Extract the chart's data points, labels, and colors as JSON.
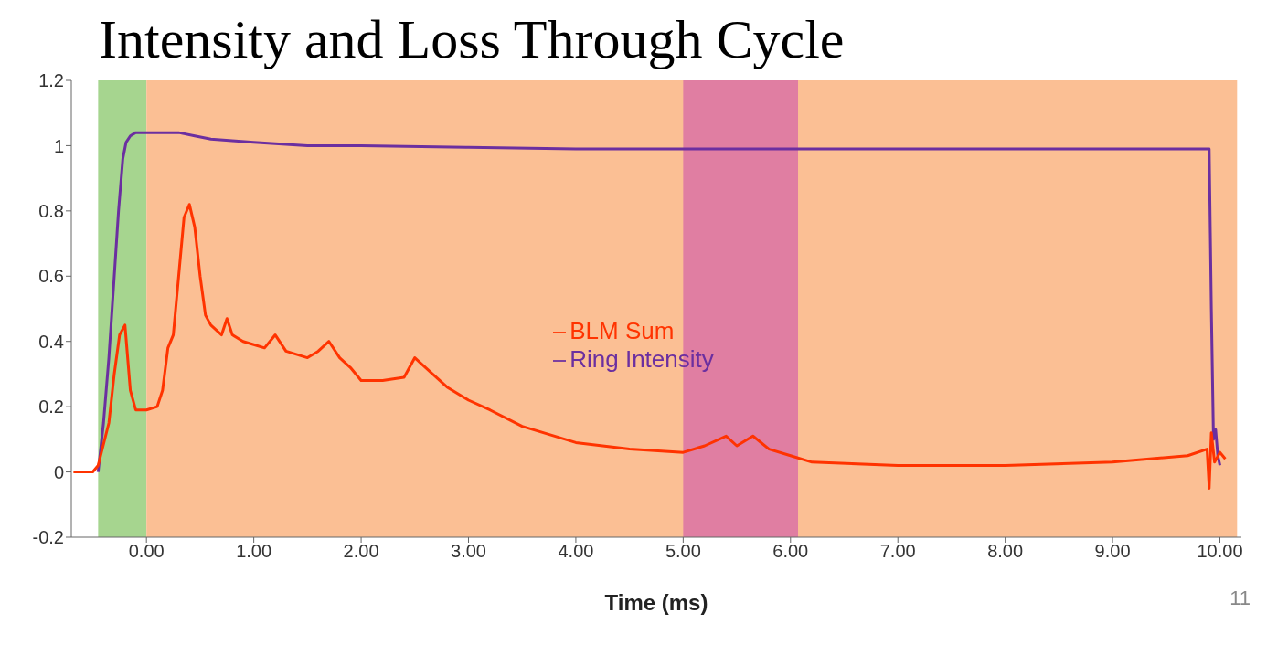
{
  "chart_data": {
    "type": "line",
    "title": "Intensity and Loss Through Cycle",
    "xlabel": "Time (ms)",
    "xlim": [
      -0.7,
      10.2
    ],
    "ylim": [
      -0.2,
      1.2
    ],
    "xticks": [
      {
        "value": 0,
        "label": "0.00"
      },
      {
        "value": 1,
        "label": "1.00"
      },
      {
        "value": 2,
        "label": "2.00"
      },
      {
        "value": 3,
        "label": "3.00"
      },
      {
        "value": 4,
        "label": "4.00"
      },
      {
        "value": 5,
        "label": "5.00"
      },
      {
        "value": 6,
        "label": "6.00"
      },
      {
        "value": 7,
        "label": "7.00"
      },
      {
        "value": 8,
        "label": "8.00"
      },
      {
        "value": 9,
        "label": "9.00"
      },
      {
        "value": 10,
        "label": "10.00"
      }
    ],
    "yticks": [
      -0.2,
      0,
      0.2,
      0.4,
      0.6,
      0.8,
      1,
      1.2
    ],
    "grid": false,
    "legend": "center",
    "marker": "none",
    "line_style": "solid",
    "bands": [
      {
        "axis": "x",
        "from": -0.45,
        "to": 0,
        "color": "#a6d58f"
      },
      {
        "axis": "x",
        "from": 0,
        "to": 10.16,
        "color": "#fbbf94"
      },
      {
        "axis": "x",
        "from": 5,
        "to": 6.07,
        "color": "#e07ea2"
      }
    ],
    "series": [
      {
        "name": "Ring Intensity",
        "color": "#6b2fa0",
        "x": [
          -0.45,
          -0.4,
          -0.35,
          -0.3,
          -0.26,
          -0.22,
          -0.19,
          -0.15,
          -0.1,
          0,
          0.3,
          0.45,
          0.6,
          0.8,
          1,
          1.5,
          2,
          3,
          4,
          5,
          6,
          7,
          8,
          9,
          9.9,
          9.92,
          9.94,
          9.96,
          9.98,
          10
        ],
        "values": [
          0,
          0.15,
          0.35,
          0.6,
          0.8,
          0.96,
          1.01,
          1.03,
          1.04,
          1.04,
          1.04,
          1.03,
          1.02,
          1.015,
          1.01,
          1.0,
          1.0,
          0.995,
          0.99,
          0.99,
          0.99,
          0.99,
          0.99,
          0.99,
          0.99,
          0.5,
          0.1,
          0.13,
          0.05,
          0.02
        ]
      },
      {
        "name": "BLM Sum",
        "color": "#ff3300",
        "x": [
          -0.68,
          -0.5,
          -0.45,
          -0.35,
          -0.3,
          -0.25,
          -0.2,
          -0.15,
          -0.1,
          0,
          0.1,
          0.15,
          0.2,
          0.25,
          0.3,
          0.35,
          0.4,
          0.45,
          0.5,
          0.55,
          0.6,
          0.7,
          0.75,
          0.8,
          0.9,
          1.0,
          1.1,
          1.2,
          1.3,
          1.5,
          1.6,
          1.7,
          1.8,
          1.9,
          2.0,
          2.2,
          2.4,
          2.5,
          2.6,
          2.8,
          3.0,
          3.2,
          3.5,
          4.0,
          4.5,
          5.0,
          5.2,
          5.4,
          5.5,
          5.65,
          5.8,
          6.0,
          6.2,
          7,
          8,
          9,
          9.7,
          9.88,
          9.9,
          9.92,
          9.95,
          10.0,
          10.05
        ],
        "values": [
          0,
          0,
          0.02,
          0.15,
          0.3,
          0.42,
          0.45,
          0.25,
          0.19,
          0.19,
          0.2,
          0.25,
          0.38,
          0.42,
          0.6,
          0.78,
          0.82,
          0.75,
          0.6,
          0.48,
          0.45,
          0.42,
          0.47,
          0.42,
          0.4,
          0.39,
          0.38,
          0.42,
          0.37,
          0.35,
          0.37,
          0.4,
          0.35,
          0.32,
          0.28,
          0.28,
          0.29,
          0.35,
          0.32,
          0.26,
          0.22,
          0.19,
          0.14,
          0.09,
          0.07,
          0.06,
          0.08,
          0.11,
          0.08,
          0.11,
          0.07,
          0.05,
          0.03,
          0.02,
          0.02,
          0.03,
          0.05,
          0.07,
          -0.05,
          0.12,
          0.03,
          0.06,
          0.04
        ]
      }
    ],
    "annotations": [
      "11"
    ]
  }
}
